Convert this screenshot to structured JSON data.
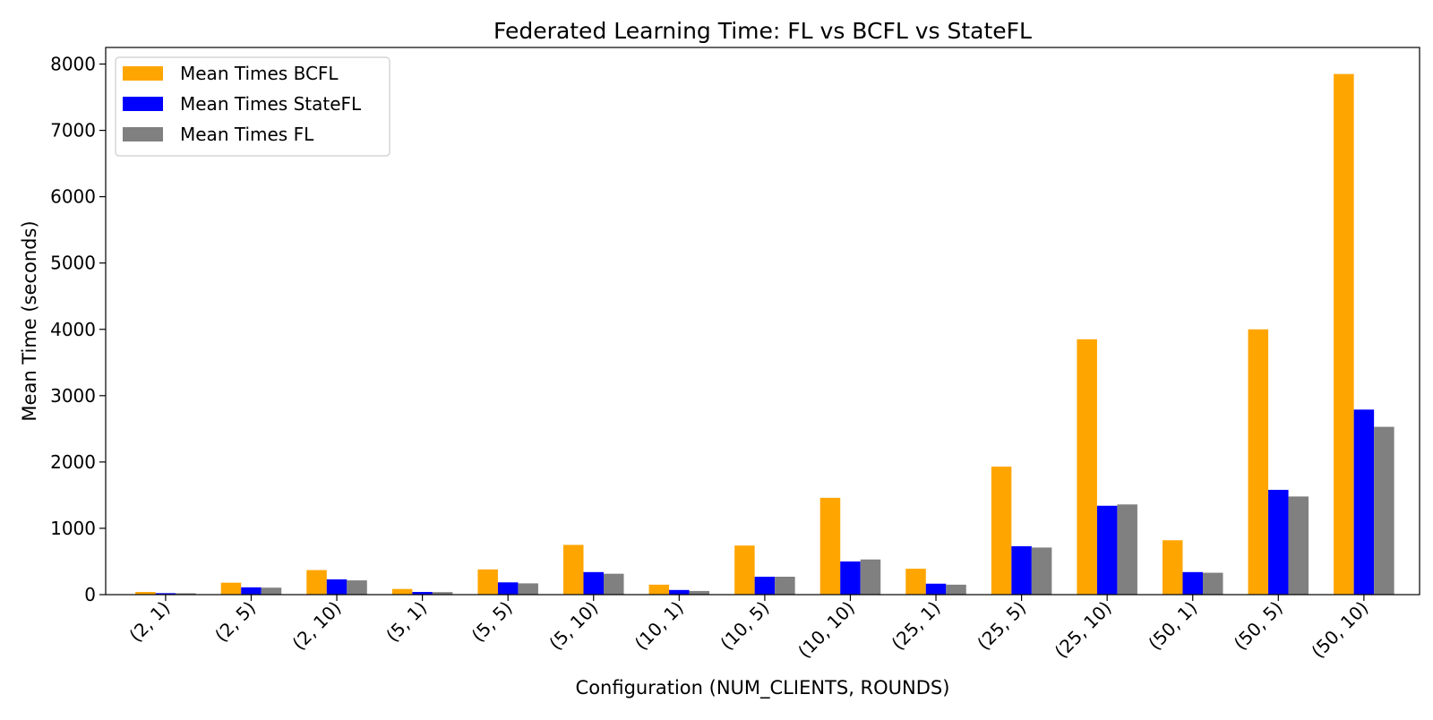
{
  "chart_data": {
    "type": "bar",
    "title": "Federated Learning Time: FL vs BCFL vs StateFL",
    "xlabel": "Configuration (NUM_CLIENTS, ROUNDS)",
    "ylabel": "Mean Time (seconds)",
    "ylim": [
      0,
      8250
    ],
    "yticks": [
      0,
      1000,
      2000,
      3000,
      4000,
      5000,
      6000,
      7000,
      8000
    ],
    "grid": false,
    "legend_position": "top-left",
    "categories": [
      "(2, 1)",
      "(2, 5)",
      "(2, 10)",
      "(5, 1)",
      "(5, 5)",
      "(5, 10)",
      "(10, 1)",
      "(10, 5)",
      "(10, 10)",
      "(25, 1)",
      "(25, 5)",
      "(25, 10)",
      "(50, 1)",
      "(50, 5)",
      "(50, 10)"
    ],
    "series": [
      {
        "name": "Mean Times BCFL",
        "color": "#ffa500",
        "values": [
          40,
          180,
          370,
          85,
          380,
          750,
          150,
          740,
          1460,
          390,
          1930,
          3850,
          820,
          4000,
          7850
        ]
      },
      {
        "name": "Mean Times StateFL",
        "color": "#0000ff",
        "values": [
          22,
          110,
          230,
          40,
          185,
          340,
          70,
          270,
          500,
          165,
          730,
          1340,
          340,
          1580,
          2790
        ]
      },
      {
        "name": "Mean Times FL",
        "color": "#808080",
        "values": [
          20,
          105,
          215,
          38,
          170,
          315,
          55,
          270,
          530,
          150,
          710,
          1360,
          330,
          1480,
          2530
        ]
      }
    ]
  }
}
